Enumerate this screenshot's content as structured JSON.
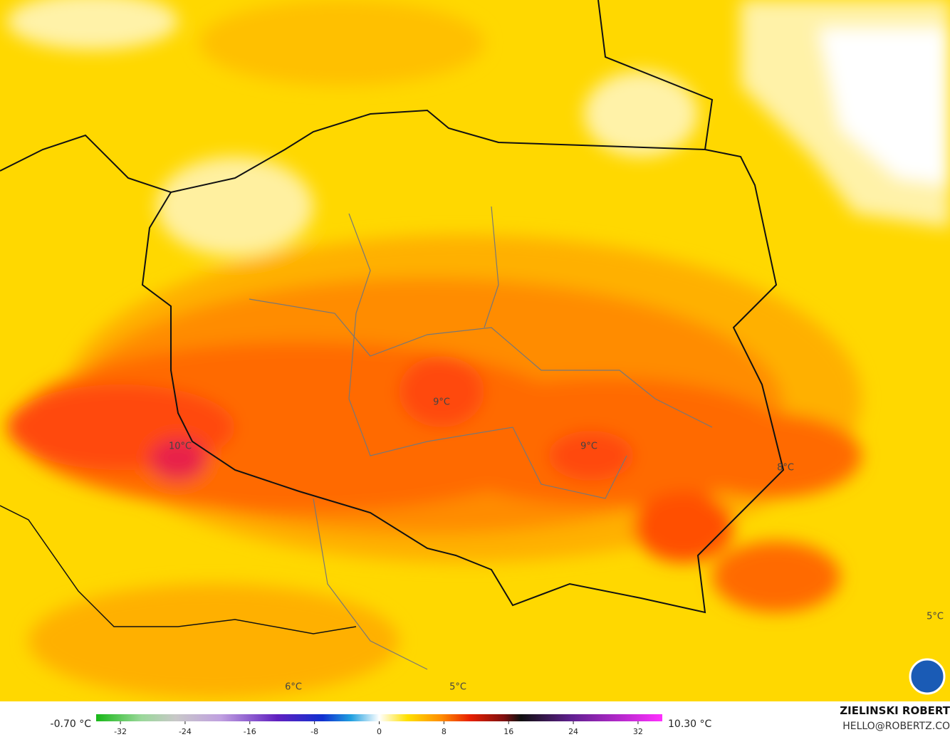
{
  "map": {
    "labels": [
      "9°C",
      "10°C",
      "9°C",
      "8°C",
      "5°C",
      "6°C",
      "5°C"
    ]
  },
  "legend": {
    "min": "-0.70 °C",
    "max": "10.30 °C",
    "lim": [
      -35,
      35
    ],
    "ticks": [
      -32,
      -24,
      -16,
      -8,
      0,
      8,
      16,
      24,
      32
    ]
  },
  "credits": {
    "author": "ZIELINSKI ROBERT",
    "email": "HELLO@ROBERTZ.CO"
  }
}
